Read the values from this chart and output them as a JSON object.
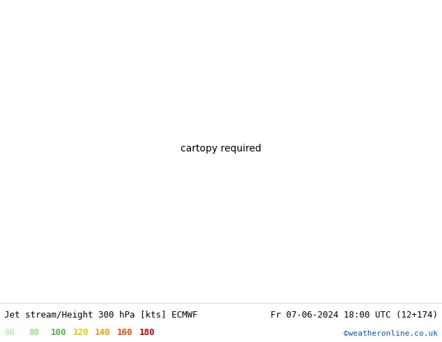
{
  "title_left": "Jet stream/Height 300 hPa [kts] ECMWF",
  "title_right": "Fr 07-06-2024 18:00 UTC (12+174)",
  "credit": "©weatheronline.co.uk",
  "legend_values": [
    60,
    80,
    100,
    120,
    140,
    160,
    180
  ],
  "legend_colors": [
    "#bbeeaa",
    "#99dd88",
    "#44bb44",
    "#ddcc00",
    "#ff9900",
    "#ff4400",
    "#cc0000"
  ],
  "land_color": "#c8eeaa",
  "sea_color": "#e8e8e8",
  "border_color": "#aaaacc",
  "contour_color": "#000000",
  "title_fontsize": 9,
  "credit_color": "#0055cc",
  "jet_colors": [
    "#c8f0b0",
    "#aaddaa",
    "#88cc66",
    "#44aa44",
    "#228833",
    "#006622"
  ],
  "jet_levels": [
    60,
    80,
    100,
    120,
    140,
    160
  ],
  "lon_min": -30,
  "lon_max": 75,
  "lat_min": -45,
  "lat_max": 65
}
